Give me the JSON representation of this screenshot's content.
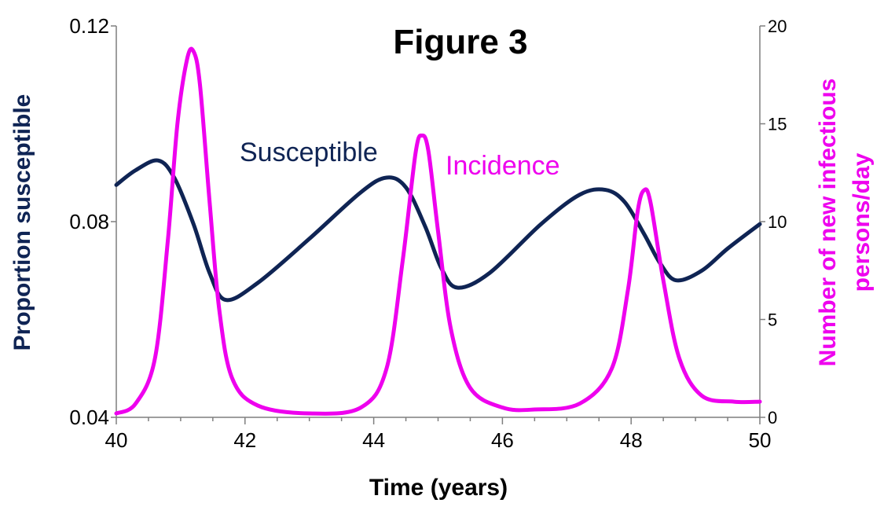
{
  "chart_data": {
    "type": "line",
    "title": "Figure 3",
    "xlabel": "Time (years)",
    "ylabel_left": "Proportion susceptible",
    "ylabel_right_lines": [
      "Number of new infectious",
      "persons/day"
    ],
    "xlim": [
      40,
      50
    ],
    "ylim_left": [
      0.04,
      0.12
    ],
    "ylim_right": [
      0,
      20
    ],
    "x_ticks": [
      "40",
      "42",
      "44",
      "46",
      "48",
      "50"
    ],
    "y_left_ticks": [
      "0.04",
      "0.08",
      "0.12"
    ],
    "y_right_ticks": [
      "0",
      "5",
      "10",
      "15",
      "20"
    ],
    "grid": false,
    "colors": {
      "susceptible": "#0f2454",
      "incidence": "#ee00ee"
    },
    "annotations": {
      "susceptible": "Susceptible",
      "incidence": "Incidence"
    },
    "series": [
      {
        "name": "Susceptible",
        "axis": "left",
        "x": [
          40.0,
          40.3,
          40.65,
          40.9,
          41.2,
          41.45,
          41.7,
          42.2,
          43.0,
          43.8,
          44.2,
          44.5,
          44.8,
          45.05,
          45.3,
          45.8,
          46.6,
          47.2,
          47.6,
          47.9,
          48.2,
          48.45,
          48.7,
          49.1,
          49.5,
          50.0
        ],
        "y": [
          0.0875,
          0.0905,
          0.0925,
          0.089,
          0.0795,
          0.0695,
          0.064,
          0.0675,
          0.0765,
          0.086,
          0.089,
          0.087,
          0.079,
          0.0705,
          0.0665,
          0.0695,
          0.0795,
          0.0855,
          0.0865,
          0.084,
          0.0775,
          0.0715,
          0.068,
          0.07,
          0.0745,
          0.0795
        ]
      },
      {
        "name": "Incidence",
        "axis": "right",
        "x": [
          40.0,
          40.3,
          40.6,
          40.8,
          40.95,
          41.1,
          41.2,
          41.3,
          41.45,
          41.6,
          41.8,
          42.2,
          43.0,
          43.8,
          44.2,
          44.45,
          44.65,
          44.75,
          44.85,
          45.0,
          45.2,
          45.5,
          46.0,
          46.5,
          47.2,
          47.7,
          47.95,
          48.1,
          48.2,
          48.3,
          48.5,
          48.75,
          49.1,
          49.6,
          50.0
        ],
        "y": [
          0.2,
          0.7,
          3.0,
          9.0,
          15.0,
          18.3,
          18.7,
          17.0,
          11.0,
          5.5,
          2.0,
          0.6,
          0.2,
          0.5,
          2.5,
          8.0,
          13.5,
          14.4,
          13.6,
          9.5,
          4.5,
          1.5,
          0.5,
          0.4,
          0.7,
          2.5,
          6.5,
          10.5,
          11.6,
          11.0,
          7.0,
          3.0,
          1.1,
          0.8,
          0.8
        ]
      }
    ]
  }
}
